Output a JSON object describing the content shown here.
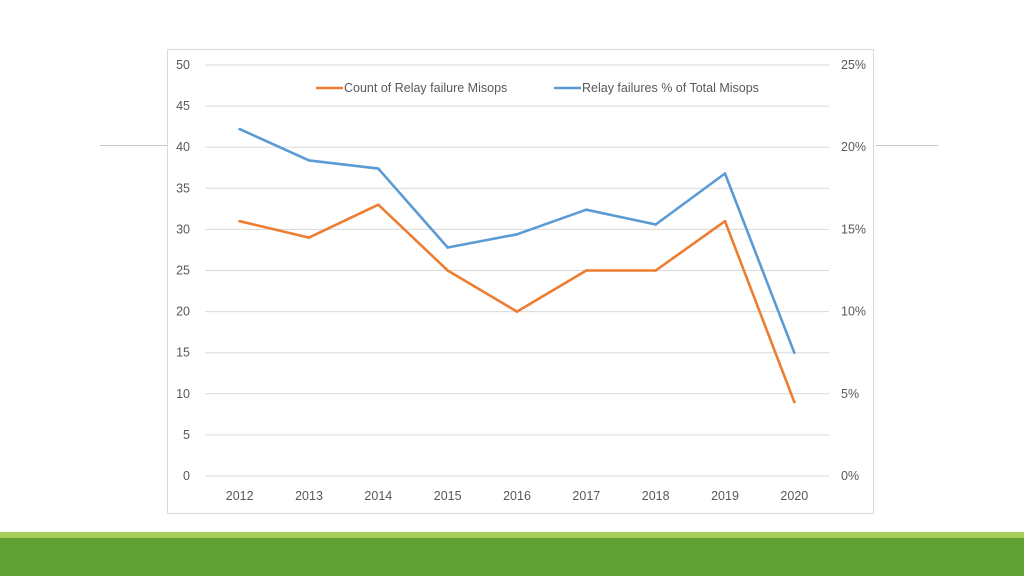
{
  "colors": {
    "count_series": "#ed7d31",
    "percent_series": "#5b9bd5",
    "gridline": "#d9d9d9",
    "tick_text": "#595959",
    "footer_thin": "#a6cf5a",
    "footer_band": "#5fa233"
  },
  "chart_data": {
    "type": "line",
    "title": "",
    "xlabel": "",
    "ylabel": "",
    "categories": [
      "2012",
      "2013",
      "2014",
      "2015",
      "2016",
      "2017",
      "2018",
      "2019",
      "2020"
    ],
    "y_left": {
      "min": 0,
      "max": 50,
      "step": 5,
      "ticks": [
        "0",
        "5",
        "10",
        "15",
        "20",
        "25",
        "30",
        "35",
        "40",
        "45",
        "50"
      ]
    },
    "y_right": {
      "min": 0,
      "max": 0.25,
      "step": 0.05,
      "ticks": [
        "0%",
        "5%",
        "10%",
        "15%",
        "20%",
        "25%"
      ]
    },
    "grid": true,
    "legend_position": "top",
    "series": [
      {
        "name": "Count of Relay failure Misops",
        "axis": "left",
        "color": "#ed7d31",
        "values": [
          31,
          29,
          33,
          25,
          20,
          25,
          25,
          31,
          9
        ]
      },
      {
        "name": "Relay failures % of Total Misops",
        "axis": "right",
        "color": "#5b9bd5",
        "values": [
          0.211,
          0.192,
          0.187,
          0.139,
          0.147,
          0.162,
          0.153,
          0.184,
          0.075
        ]
      }
    ]
  }
}
